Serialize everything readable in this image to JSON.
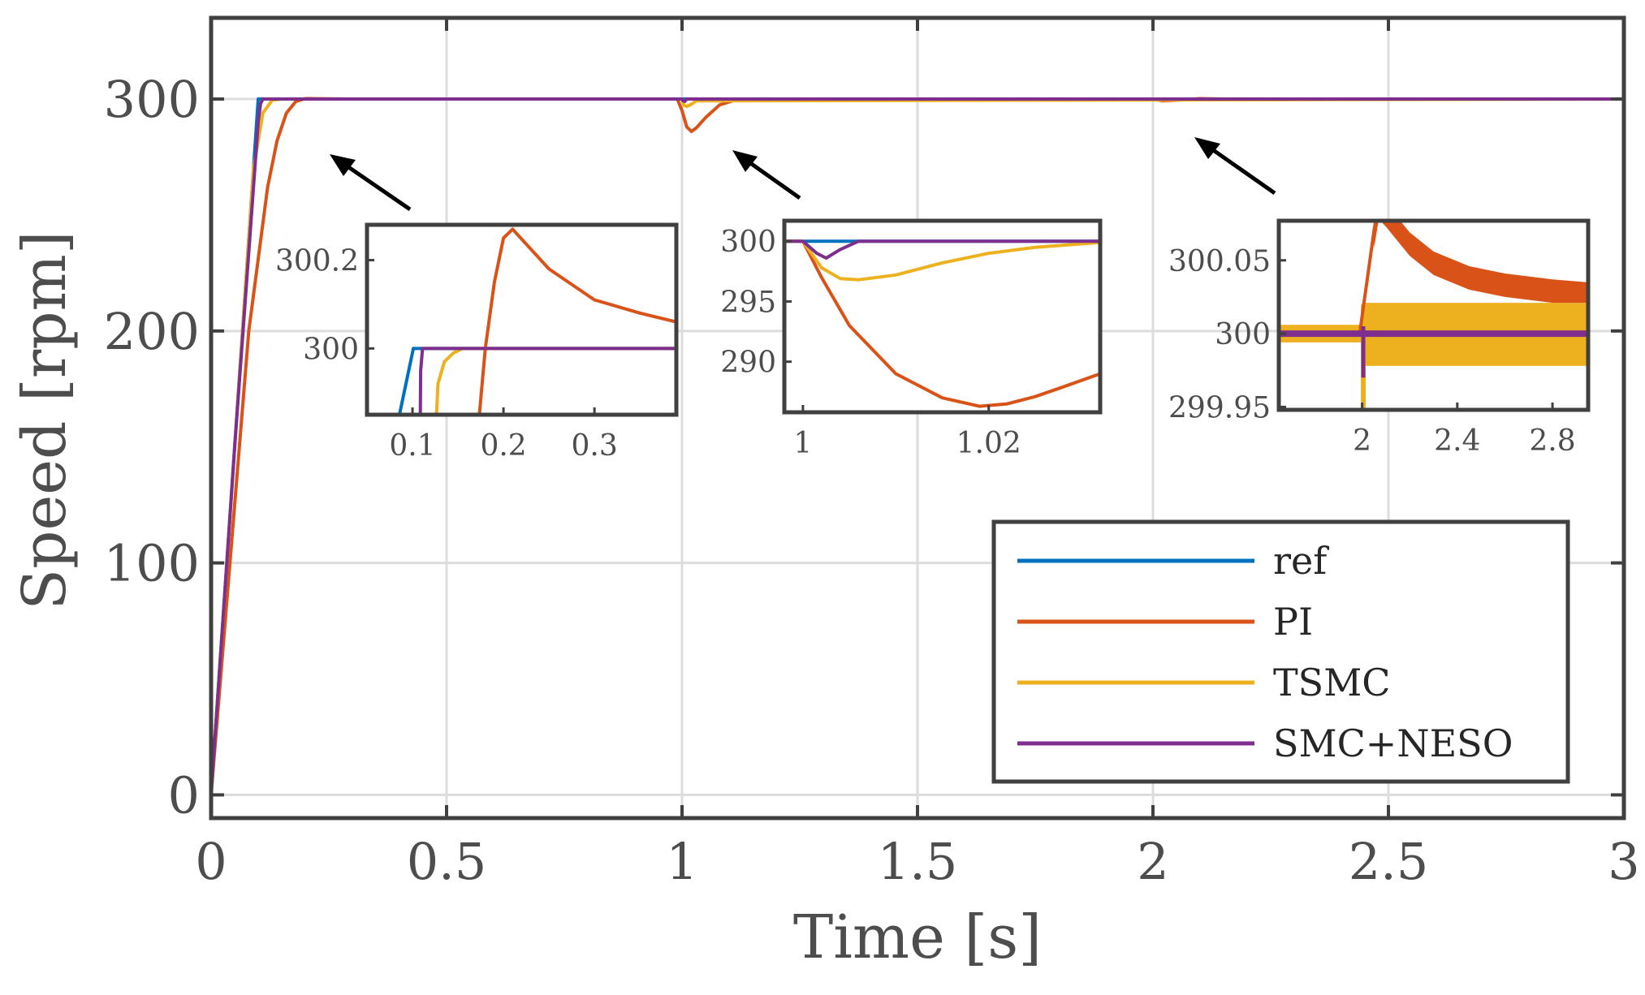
{
  "chart_data": {
    "type": "line",
    "xlabel": "Time [s]",
    "ylabel": "Speed [rpm]",
    "xlim": [
      0,
      3
    ],
    "ylim": [
      -10,
      335
    ],
    "xticks": [
      0,
      0.5,
      1,
      1.5,
      2,
      2.5,
      3
    ],
    "xtick_labels": [
      "0",
      "0.5",
      "1",
      "1.5",
      "2",
      "2.5",
      "3"
    ],
    "yticks": [
      0,
      100,
      200,
      300
    ],
    "ytick_labels": [
      "0",
      "100",
      "200",
      "300"
    ],
    "grid": true,
    "legend_position": "bottom-right",
    "series": [
      {
        "name": "ref",
        "color": "#0072BD",
        "x": [
          0,
          0.1,
          3
        ],
        "y": [
          0,
          300,
          300
        ]
      },
      {
        "name": "PI",
        "color": "#D95319",
        "x": [
          0,
          0.04,
          0.08,
          0.12,
          0.14,
          0.16,
          0.18,
          0.2,
          0.25,
          0.3,
          0.99,
          1.0,
          1.01,
          1.02,
          1.03,
          1.05,
          1.08,
          1.12,
          2.0,
          2.02,
          2.05,
          2.1,
          2.15,
          3.0
        ],
        "y": [
          0,
          100,
          200,
          262,
          282,
          294,
          299,
          300.2,
          300.1,
          300,
          300,
          295,
          288,
          286,
          287.5,
          292,
          297.5,
          300,
          300,
          299.2,
          299.5,
          300.2,
          300,
          300
        ]
      },
      {
        "name": "TSMC",
        "color": "#EDB120",
        "x": [
          0,
          0.03,
          0.06,
          0.09,
          0.11,
          0.13,
          0.15,
          1.0,
          1.004,
          1.01,
          1.02,
          1.03,
          3.0
        ],
        "y": [
          0,
          90,
          180,
          270,
          294,
          299.6,
          300,
          300,
          297.3,
          296.8,
          297.8,
          299.2,
          300
        ]
      },
      {
        "name": "SMC+NESO",
        "color": "#7E2F8E",
        "x": [
          0,
          0.05,
          0.1,
          0.105,
          0.11,
          1.0,
          1.002,
          1.006,
          1.01,
          3.0
        ],
        "y": [
          0,
          150,
          290,
          298,
          300,
          300,
          299.2,
          299,
          300,
          300
        ]
      }
    ],
    "legend": [
      "ref",
      "PI",
      "TSMC",
      "SMC+NESO"
    ],
    "insets": [
      {
        "name": "inset-1",
        "xlim": [
          0.05,
          0.39
        ],
        "ylim": [
          299.85,
          300.28
        ],
        "xticks": [
          0.1,
          0.2,
          0.3
        ],
        "xtick_labels": [
          "0.1",
          "0.2",
          "0.3"
        ],
        "yticks": [
          300,
          300.2
        ],
        "ytick_labels": [
          "300",
          "300.2"
        ],
        "series": [
          {
            "name": "ref",
            "x": [
              0.05,
              0.101,
              0.39
            ],
            "y": [
              299.5,
              300,
              300
            ]
          },
          {
            "name": "PI",
            "x": [
              0.167,
              0.18,
              0.19,
              0.2,
              0.21,
              0.25,
              0.3,
              0.35,
              0.39
            ],
            "y": [
              299.7,
              300.0,
              300.15,
              300.25,
              300.27,
              300.18,
              300.11,
              300.08,
              300.06
            ]
          },
          {
            "name": "TSMC",
            "x": [
              0.123,
              0.128,
              0.135,
              0.145,
              0.155,
              0.39
            ],
            "y": [
              299.7,
              299.92,
              299.97,
              299.99,
              300,
              300
            ]
          },
          {
            "name": "SMC+NESO",
            "x": [
              0.108,
              0.109,
              0.111,
              0.39
            ],
            "y": [
              299.7,
              299.95,
              300,
              300
            ]
          }
        ]
      },
      {
        "name": "inset-2",
        "xlim": [
          0.998,
          1.032
        ],
        "ylim": [
          285.8,
          301.7
        ],
        "xticks": [
          1,
          1.02
        ],
        "xtick_labels": [
          "1",
          "1.02"
        ],
        "yticks": [
          290,
          295,
          300
        ],
        "ytick_labels": [
          "290",
          "295",
          "300"
        ],
        "series": [
          {
            "name": "ref",
            "x": [
              0.998,
              1.032
            ],
            "y": [
              300,
              300
            ]
          },
          {
            "name": "PI",
            "x": [
              0.998,
              1.0,
              1.002,
              1.005,
              1.01,
              1.015,
              1.019,
              1.022,
              1.025,
              1.028,
              1.032
            ],
            "y": [
              300,
              300,
              297,
              293,
              289,
              287,
              286.3,
              286.5,
              287.1,
              287.9,
              289.0
            ]
          },
          {
            "name": "TSMC",
            "x": [
              0.998,
              1.0,
              1.002,
              1.004,
              1.006,
              1.01,
              1.015,
              1.02,
              1.025,
              1.032
            ],
            "y": [
              300,
              300,
              297.8,
              296.9,
              296.8,
              297.2,
              298.2,
              299.0,
              299.5,
              299.9
            ]
          },
          {
            "name": "SMC+NESO",
            "x": [
              0.998,
              1.0,
              1.0015,
              1.0025,
              1.004,
              1.006,
              1.032
            ],
            "y": [
              300,
              300,
              299.0,
              298.6,
              299.3,
              300,
              300
            ]
          }
        ]
      },
      {
        "name": "inset-3",
        "xlim": [
          1.65,
          2.95
        ],
        "ylim": [
          299.948,
          300.077
        ],
        "xticks": [
          2,
          2.4,
          2.8
        ],
        "xtick_labels": [
          "2",
          "2.4",
          "2.8"
        ],
        "yticks": [
          299.95,
          300,
          300.05
        ],
        "ytick_labels": [
          "299.95",
          "300",
          "300.05"
        ],
        "series": [
          {
            "name": "ref",
            "x": [
              1.65,
              2.95
            ],
            "y": [
              300,
              300
            ]
          },
          {
            "name": "PI",
            "x": [
              1.65,
              1.99,
              2.05,
              2.07,
              2.1,
              2.15,
              2.2,
              2.3,
              2.45,
              2.6,
              2.8,
              2.95
            ],
            "y": [
              300,
              300,
              300.07,
              300.09,
              300.085,
              300.075,
              300.065,
              300.052,
              300.042,
              300.037,
              300.033,
              300.031
            ]
          },
          {
            "name": "TSMC",
            "x": [
              1.65,
              2.95
            ],
            "y": [
              300,
              300
            ]
          },
          {
            "name": "SMC+NESO",
            "x": [
              1.65,
              2.0,
              2.02,
              2.95
            ],
            "y": [
              300,
              300,
              300,
              300
            ]
          }
        ]
      }
    ]
  }
}
